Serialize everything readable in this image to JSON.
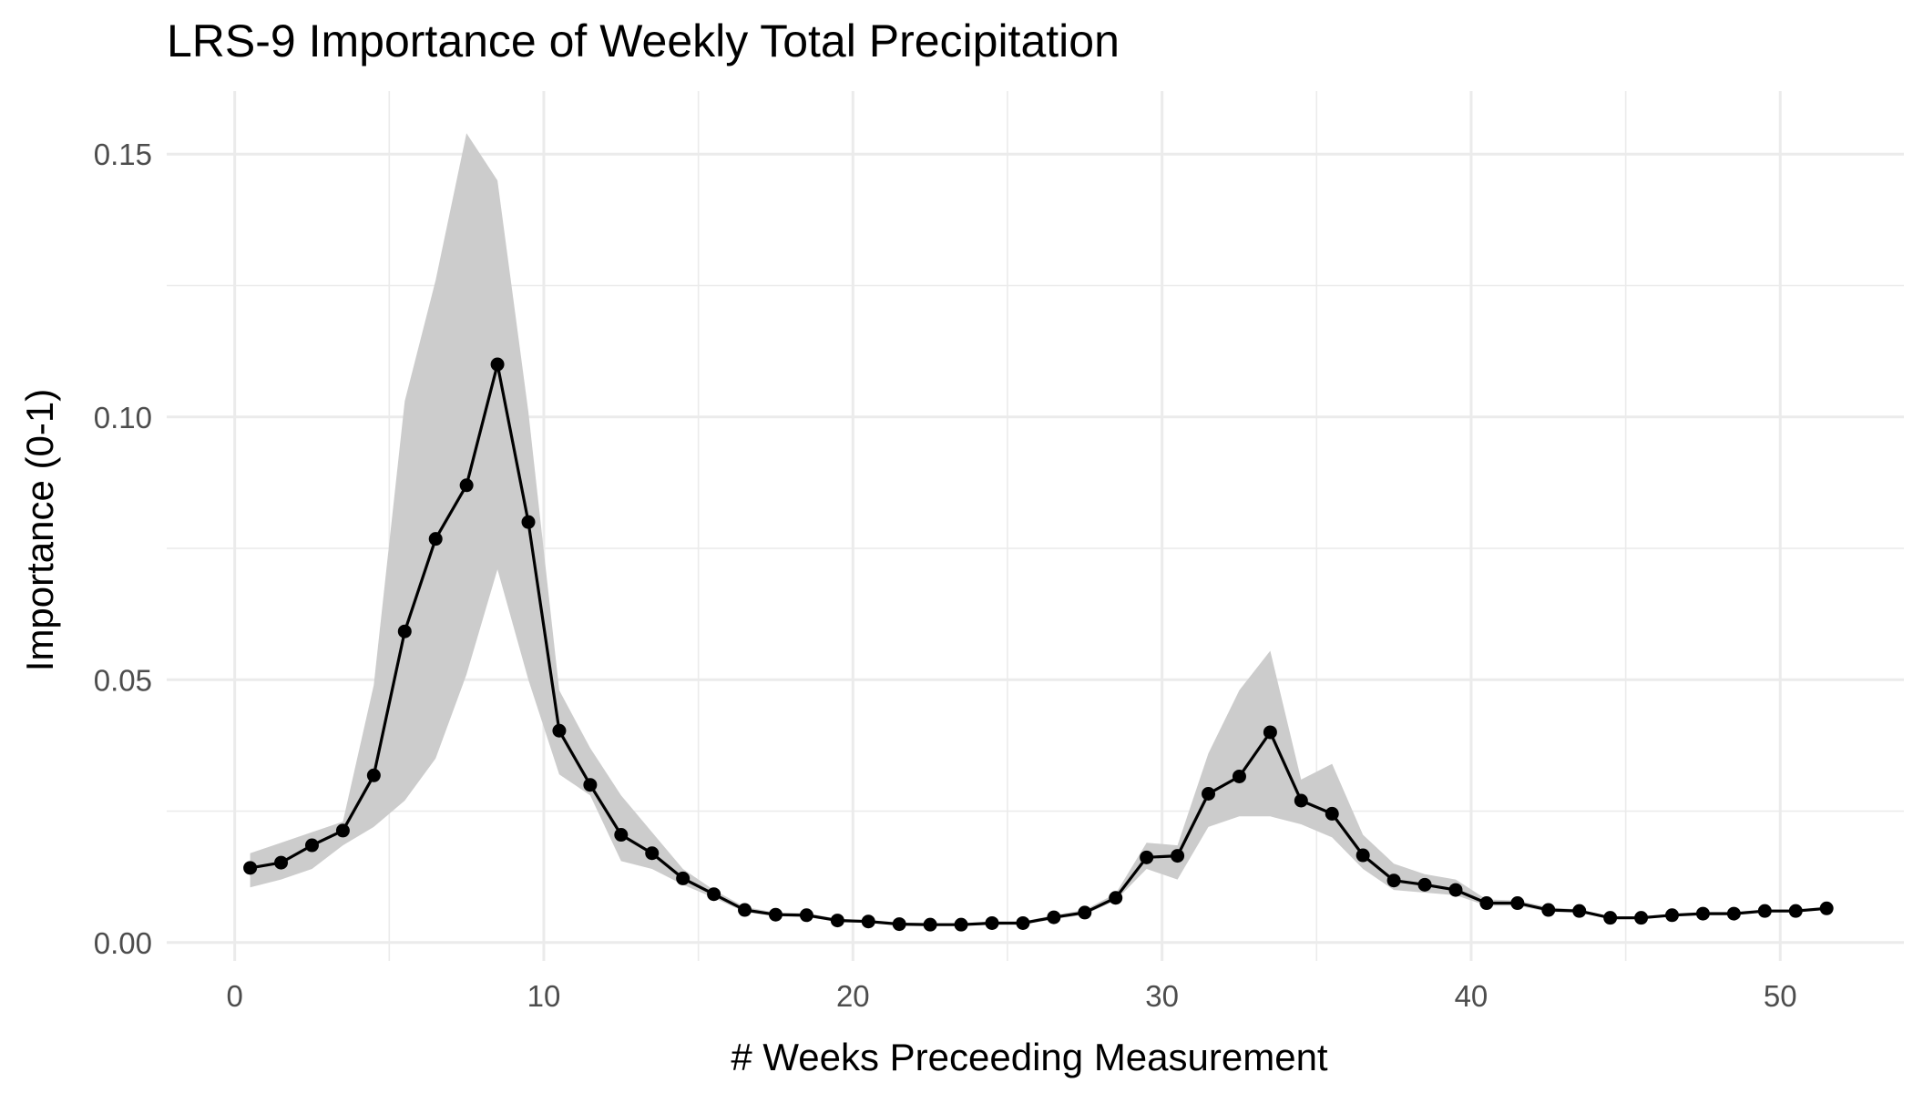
{
  "chart_data": {
    "type": "line",
    "title": "LRS-9 Importance of Weekly Total Precipitation",
    "xlabel": "# Weeks Preceeding Measurement",
    "ylabel": "Importance (0-1)",
    "xlim": [
      -2.2,
      54.0
    ],
    "ylim": [
      -0.0035,
      0.162
    ],
    "x_ticks": [
      0,
      10,
      20,
      30,
      40,
      50
    ],
    "x_tick_labels": [
      "0",
      "10",
      "20",
      "30",
      "40",
      "50"
    ],
    "y_ticks": [
      0.0,
      0.05,
      0.1,
      0.15
    ],
    "y_tick_labels": [
      "0.00",
      "0.05",
      "0.10",
      "0.15"
    ],
    "grid": true,
    "legend": "none",
    "series": [
      {
        "x": [
          0.5,
          1.5,
          2.5,
          3.5,
          4.5,
          5.5,
          6.5,
          7.5,
          8.5,
          9.5,
          10.5,
          11.5,
          12.5,
          13.5,
          14.5,
          15.5,
          16.5,
          17.5,
          18.5,
          19.5,
          20.5,
          21.5,
          22.5,
          23.5,
          24.5,
          25.5,
          26.5,
          27.5,
          28.5,
          29.5,
          30.5,
          31.5,
          32.5,
          33.5,
          34.5,
          35.5,
          36.5,
          37.5,
          38.5,
          39.5,
          40.5,
          41.5,
          42.5,
          43.5,
          44.5,
          45.5,
          46.5,
          47.5,
          48.5,
          49.5,
          50.5,
          51.5
        ],
        "y": [
          0.0142,
          0.0152,
          0.0185,
          0.0213,
          0.0318,
          0.0592,
          0.0768,
          0.087,
          0.11,
          0.08,
          0.0403,
          0.03,
          0.0205,
          0.017,
          0.0122,
          0.0092,
          0.0062,
          0.0053,
          0.0052,
          0.0042,
          0.004,
          0.0035,
          0.0034,
          0.0034,
          0.0037,
          0.0037,
          0.0048,
          0.0057,
          0.0085,
          0.0162,
          0.0165,
          0.0283,
          0.0316,
          0.04,
          0.027,
          0.0245,
          0.0166,
          0.0118,
          0.011,
          0.01,
          0.0075,
          0.0075,
          0.0062,
          0.006,
          0.0047,
          0.0047,
          0.0052,
          0.0055,
          0.0055,
          0.006,
          0.006,
          0.0065
        ],
        "lower": [
          0.0105,
          0.012,
          0.014,
          0.0185,
          0.022,
          0.027,
          0.035,
          0.051,
          0.071,
          0.05,
          0.032,
          0.028,
          0.0155,
          0.014,
          0.011,
          0.0085,
          0.0058,
          0.005,
          0.0048,
          0.004,
          0.0038,
          0.0033,
          0.0032,
          0.0032,
          0.0034,
          0.0035,
          0.0044,
          0.0053,
          0.008,
          0.014,
          0.012,
          0.022,
          0.024,
          0.024,
          0.0225,
          0.02,
          0.014,
          0.01,
          0.0095,
          0.009,
          0.007,
          0.007,
          0.0058,
          0.0057,
          0.0045,
          0.0045,
          0.005,
          0.0053,
          0.0053,
          0.0058,
          0.0058,
          0.0062
        ],
        "upper": [
          0.017,
          0.019,
          0.021,
          0.023,
          0.049,
          0.103,
          0.126,
          0.154,
          0.145,
          0.101,
          0.048,
          0.037,
          0.028,
          0.021,
          0.014,
          0.01,
          0.0068,
          0.0057,
          0.0056,
          0.0045,
          0.0043,
          0.0038,
          0.0037,
          0.0037,
          0.004,
          0.004,
          0.0052,
          0.0062,
          0.0093,
          0.019,
          0.0185,
          0.036,
          0.048,
          0.0555,
          0.031,
          0.034,
          0.0205,
          0.015,
          0.013,
          0.012,
          0.0082,
          0.008,
          0.0067,
          0.0063,
          0.005,
          0.005,
          0.0055,
          0.0058,
          0.0058,
          0.0063,
          0.0063,
          0.0068
        ]
      }
    ]
  },
  "colors": {
    "line": "#000000",
    "points": "#000000",
    "band": "#cccccc",
    "grid": "#ebebeb",
    "tick_text": "#4d4d4d"
  }
}
